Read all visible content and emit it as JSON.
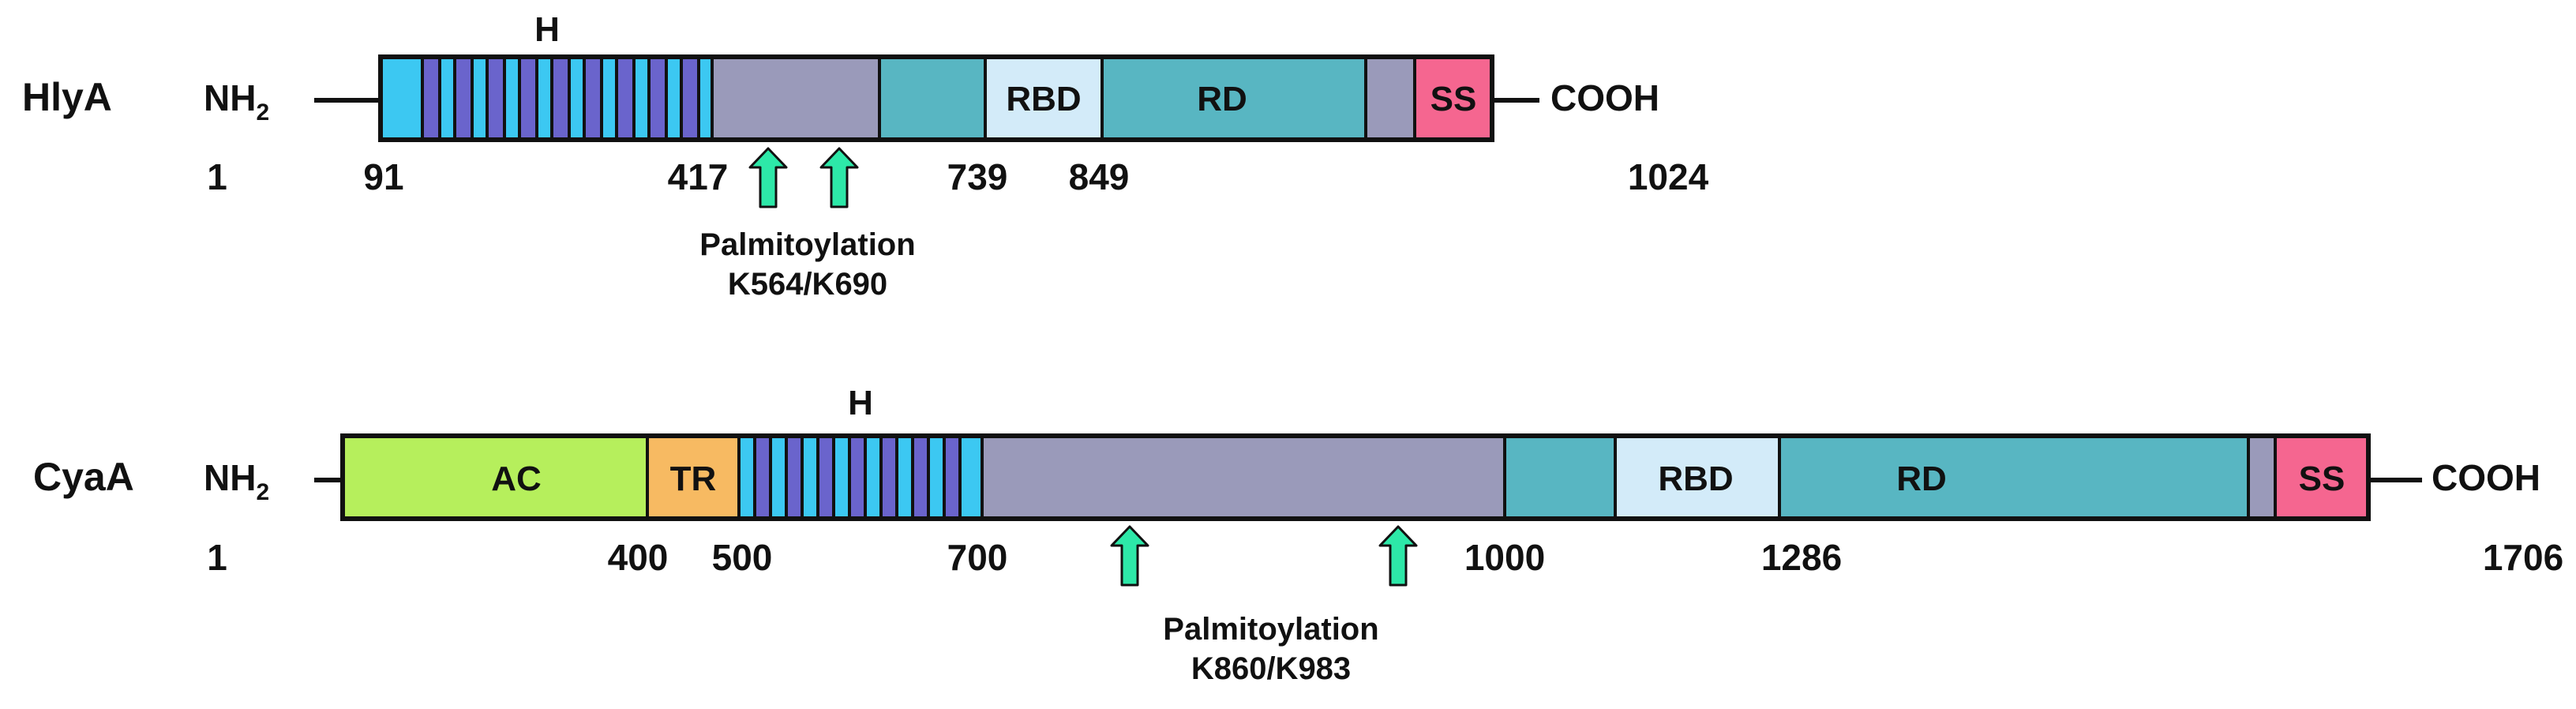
{
  "colors": {
    "repeat_cyan": "#3cc8f2",
    "repeat_purple": "#6a64cc",
    "linker_grey": "#9a9aba",
    "teal": "#58b6c2",
    "rbd": "#d3ebf9",
    "ss": "#f56690",
    "ac": "#b6ef5c",
    "tr": "#f7ba62",
    "arrow": "#2de8a8",
    "outline": "#111111"
  },
  "hlya": {
    "name": "HlyA",
    "n_terminus": "NH",
    "n_terminus_sub": "2",
    "c_terminus": "COOH",
    "hydrophobic_label": "H",
    "domains": {
      "rbd": "RBD",
      "rd": "RD",
      "ss": "SS"
    },
    "positions": [
      "1",
      "91",
      "417",
      "739",
      "849",
      "1024"
    ],
    "palmitoylation": {
      "label": "Palmitoylation",
      "sites": "K564/K690"
    }
  },
  "cyaa": {
    "name": "CyaA",
    "n_terminus": "NH",
    "n_terminus_sub": "2",
    "c_terminus": "COOH",
    "hydrophobic_label": "H",
    "domains": {
      "ac": "AC",
      "tr": "TR",
      "rbd": "RBD",
      "rd": "RD",
      "ss": "SS"
    },
    "positions": [
      "1",
      "400",
      "500",
      "700",
      "1000",
      "1286",
      "1706"
    ],
    "palmitoylation": {
      "label": "Palmitoylation",
      "sites": "K860/K983"
    }
  }
}
